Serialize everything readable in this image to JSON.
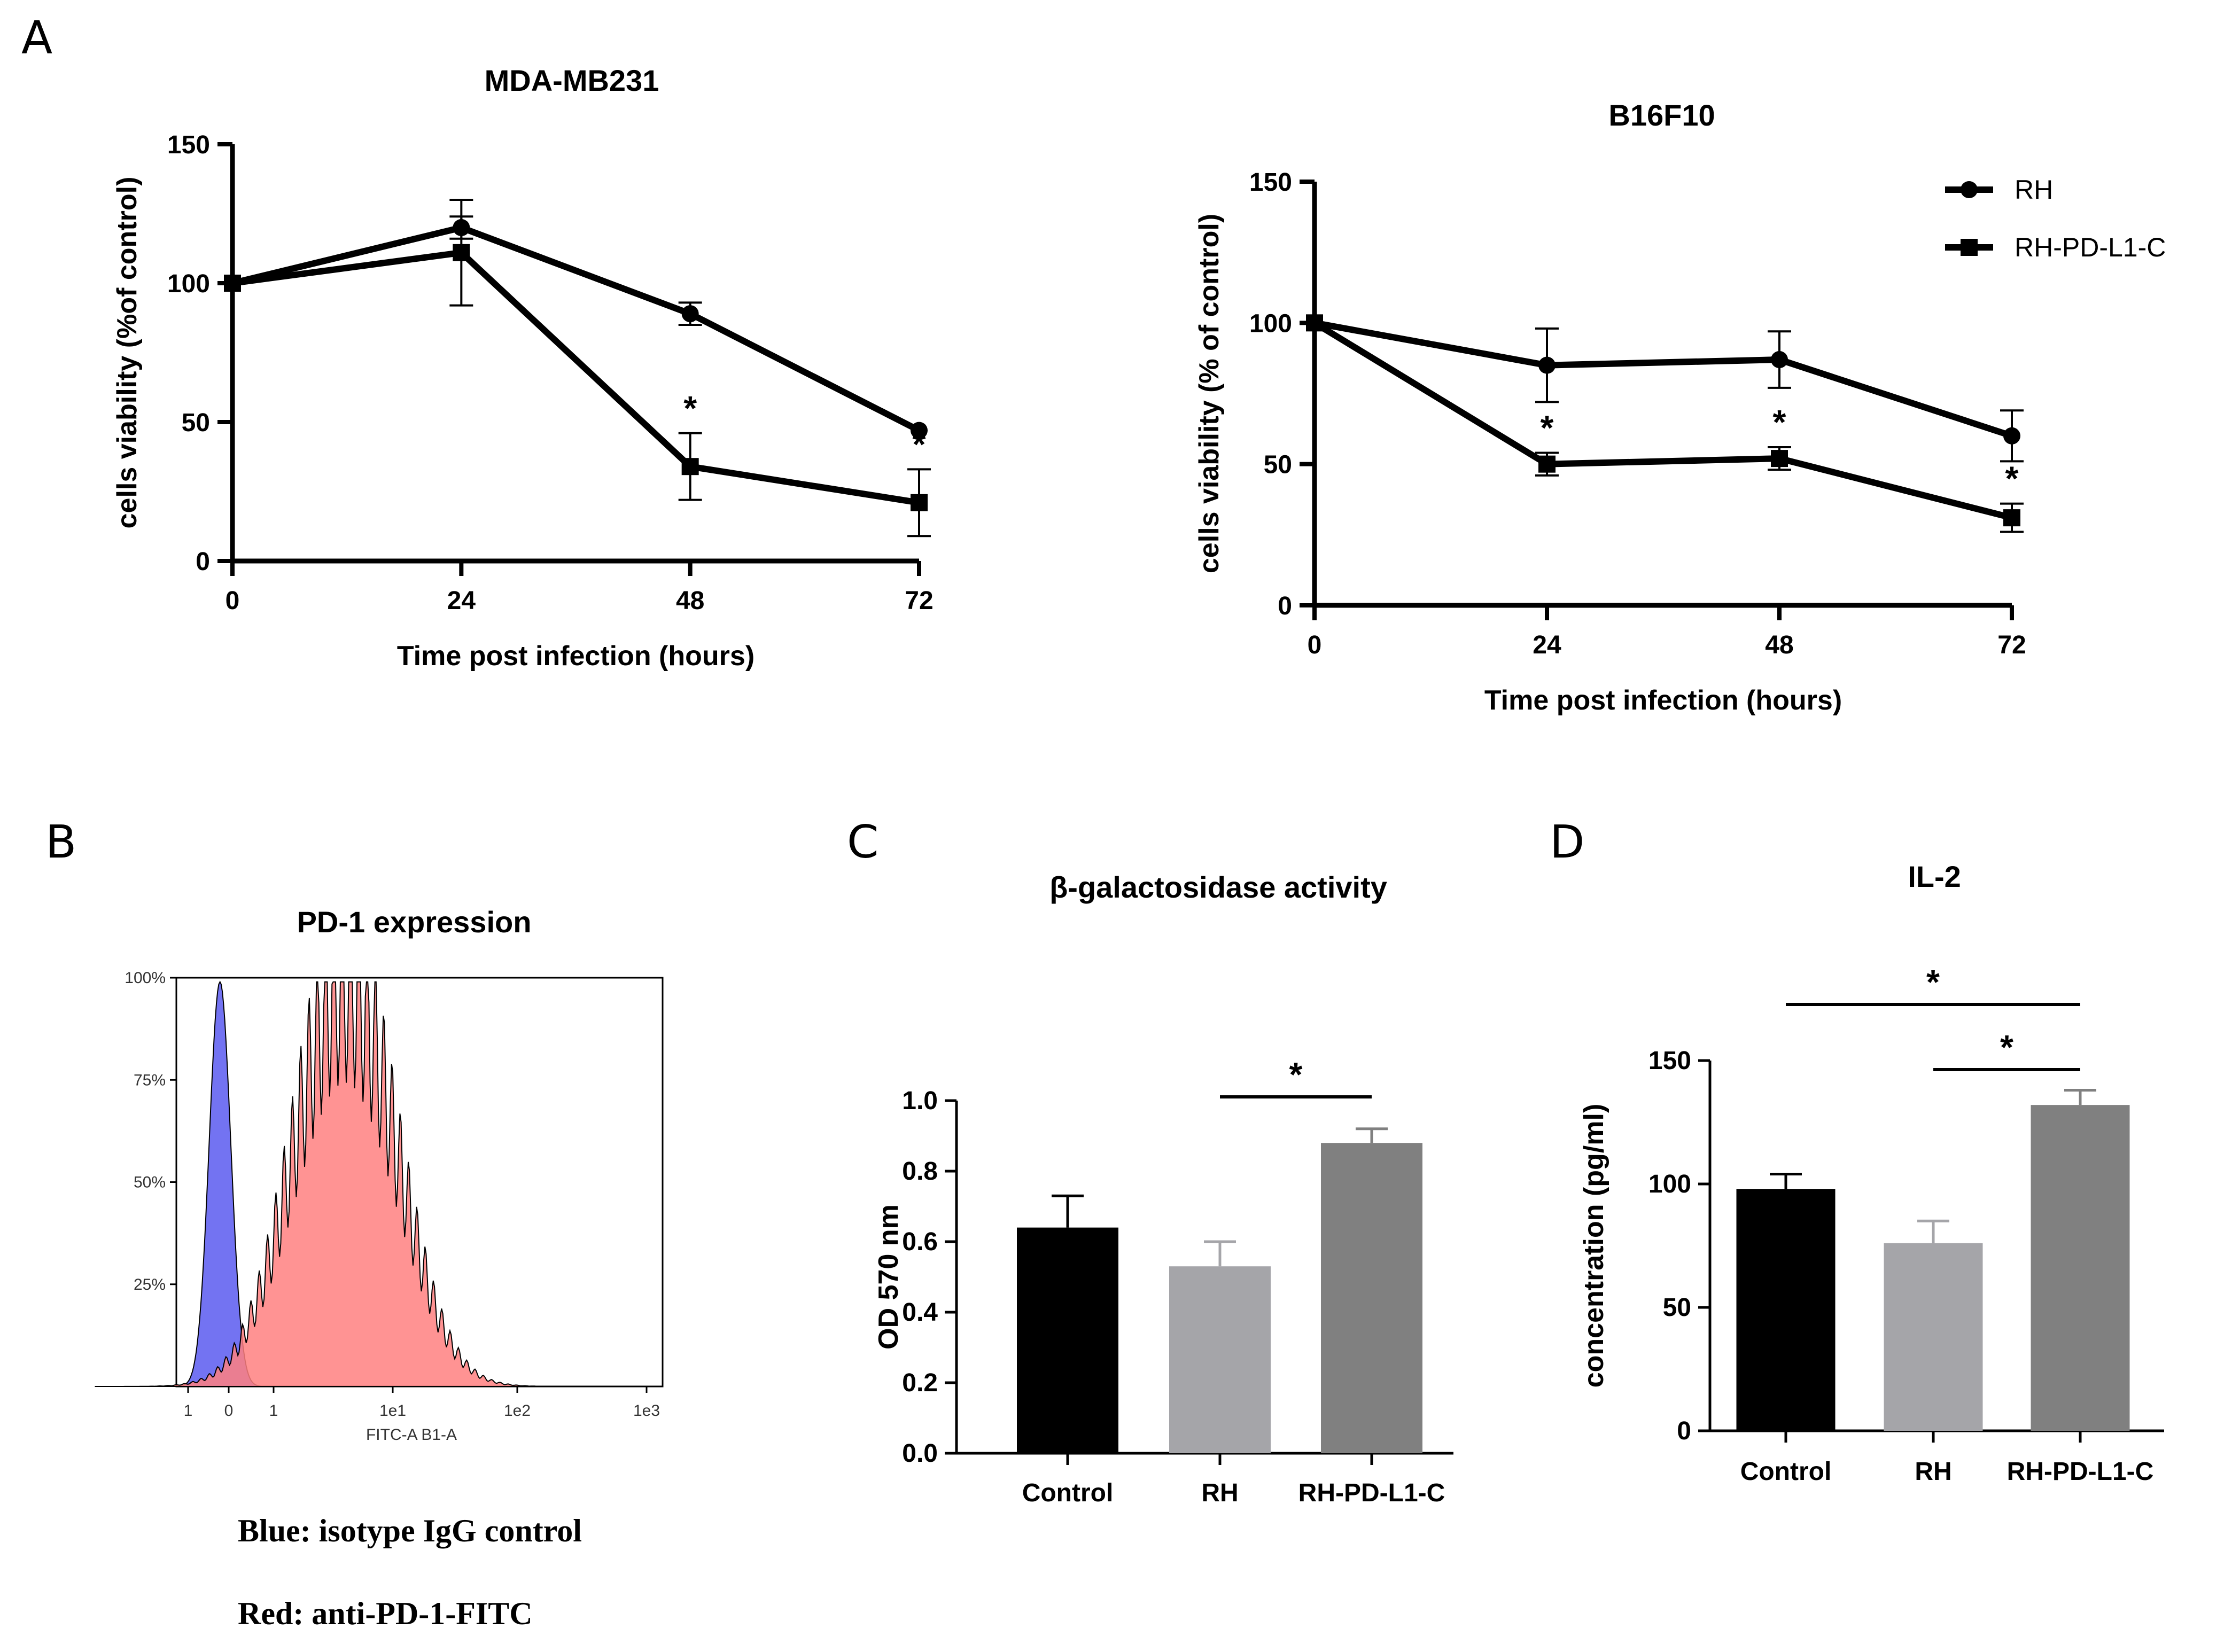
{
  "panels": {
    "a": "A",
    "b": "B",
    "c": "C",
    "d": "D"
  },
  "chart_data": [
    {
      "id": "mda",
      "type": "line",
      "title": "MDA-MB231",
      "xlabel": "Time post infection (hours)",
      "ylabel": "cells viability (%of control)",
      "xlim": [
        0,
        72
      ],
      "ylim": [
        0,
        150
      ],
      "x": [
        0,
        24,
        48,
        72
      ],
      "xticks": [
        "0",
        "24",
        "48",
        "72"
      ],
      "yticks": [
        "0",
        "50",
        "100",
        "150"
      ],
      "series": [
        {
          "name": "RH",
          "marker": "circle",
          "values": [
            100,
            120,
            89,
            47
          ],
          "errors": [
            0,
            4,
            4,
            0
          ]
        },
        {
          "name": "RH-PD-L1-C",
          "marker": "square",
          "values": [
            100,
            111,
            34,
            21
          ],
          "errors": [
            0,
            19,
            12,
            12
          ]
        }
      ],
      "significance": [
        "",
        "",
        "*",
        "*"
      ]
    },
    {
      "id": "b16",
      "type": "line",
      "title": "B16F10",
      "xlabel": "Time post infection (hours)",
      "ylabel": "cells viability (% of control)",
      "xlim": [
        0,
        72
      ],
      "ylim": [
        0,
        150
      ],
      "x": [
        0,
        24,
        48,
        72
      ],
      "xticks": [
        "0",
        "24",
        "48",
        "72"
      ],
      "yticks": [
        "0",
        "50",
        "100",
        "150"
      ],
      "legend_position": "top-right",
      "series": [
        {
          "name": "RH",
          "marker": "circle",
          "values": [
            100,
            85,
            87,
            60
          ],
          "errors": [
            0,
            13,
            10,
            9
          ]
        },
        {
          "name": "RH-PD-L1-C",
          "marker": "square",
          "values": [
            100,
            50,
            52,
            31
          ],
          "errors": [
            0,
            4,
            4,
            5
          ]
        }
      ],
      "significance": [
        "",
        "*",
        "*",
        "*"
      ]
    },
    {
      "id": "pd1",
      "type": "histogram",
      "title": "PD-1 expression",
      "xlabel": "FITC-A B1-A",
      "xticks": [
        "1",
        "0",
        "1",
        "1e1",
        "1e2",
        "1e3"
      ],
      "yticks": [
        "25%",
        "50%",
        "75%",
        "100%"
      ],
      "series": [
        {
          "name": "isotype IgG control",
          "color": "#5b5bf0",
          "peak_log10": -0.45,
          "spread": 0.09
        },
        {
          "name": "anti-PD-1-FITC",
          "color": "#ff8080",
          "peak_log10": 0.6,
          "spread": 0.42
        }
      ],
      "caption": [
        "Blue: isotype IgG control",
        "Red: anti-PD-1-FITC"
      ]
    },
    {
      "id": "beta",
      "type": "bar",
      "title": "β-galactosidase activity",
      "ylabel": "OD 570 nm",
      "ylim": [
        0,
        1.0
      ],
      "yticks": [
        "0.0",
        "0.2",
        "0.4",
        "0.6",
        "0.8",
        "1.0"
      ],
      "categories": [
        "Control",
        "RH",
        "RH-PD-L1-C"
      ],
      "values": [
        0.64,
        0.53,
        0.88
      ],
      "errors": [
        0.09,
        0.07,
        0.04
      ],
      "colors": [
        "#000000",
        "#a5a5a9",
        "#808080"
      ],
      "comparisons": [
        {
          "from": 1,
          "to": 2,
          "label": "*"
        }
      ]
    },
    {
      "id": "il2",
      "type": "bar",
      "title": "IL-2",
      "ylabel": "concentration (pg/ml)",
      "ylim": [
        0,
        150
      ],
      "yticks": [
        "0",
        "50",
        "100",
        "150"
      ],
      "categories": [
        "Control",
        "RH",
        "RH-PD-L1-C"
      ],
      "values": [
        98,
        76,
        132
      ],
      "errors": [
        6,
        9,
        6
      ],
      "colors": [
        "#000000",
        "#a5a5a9",
        "#808080"
      ],
      "comparisons": [
        {
          "from": 1,
          "to": 2,
          "label": "*"
        },
        {
          "from": 0,
          "to": 2,
          "label": "*"
        }
      ]
    }
  ]
}
